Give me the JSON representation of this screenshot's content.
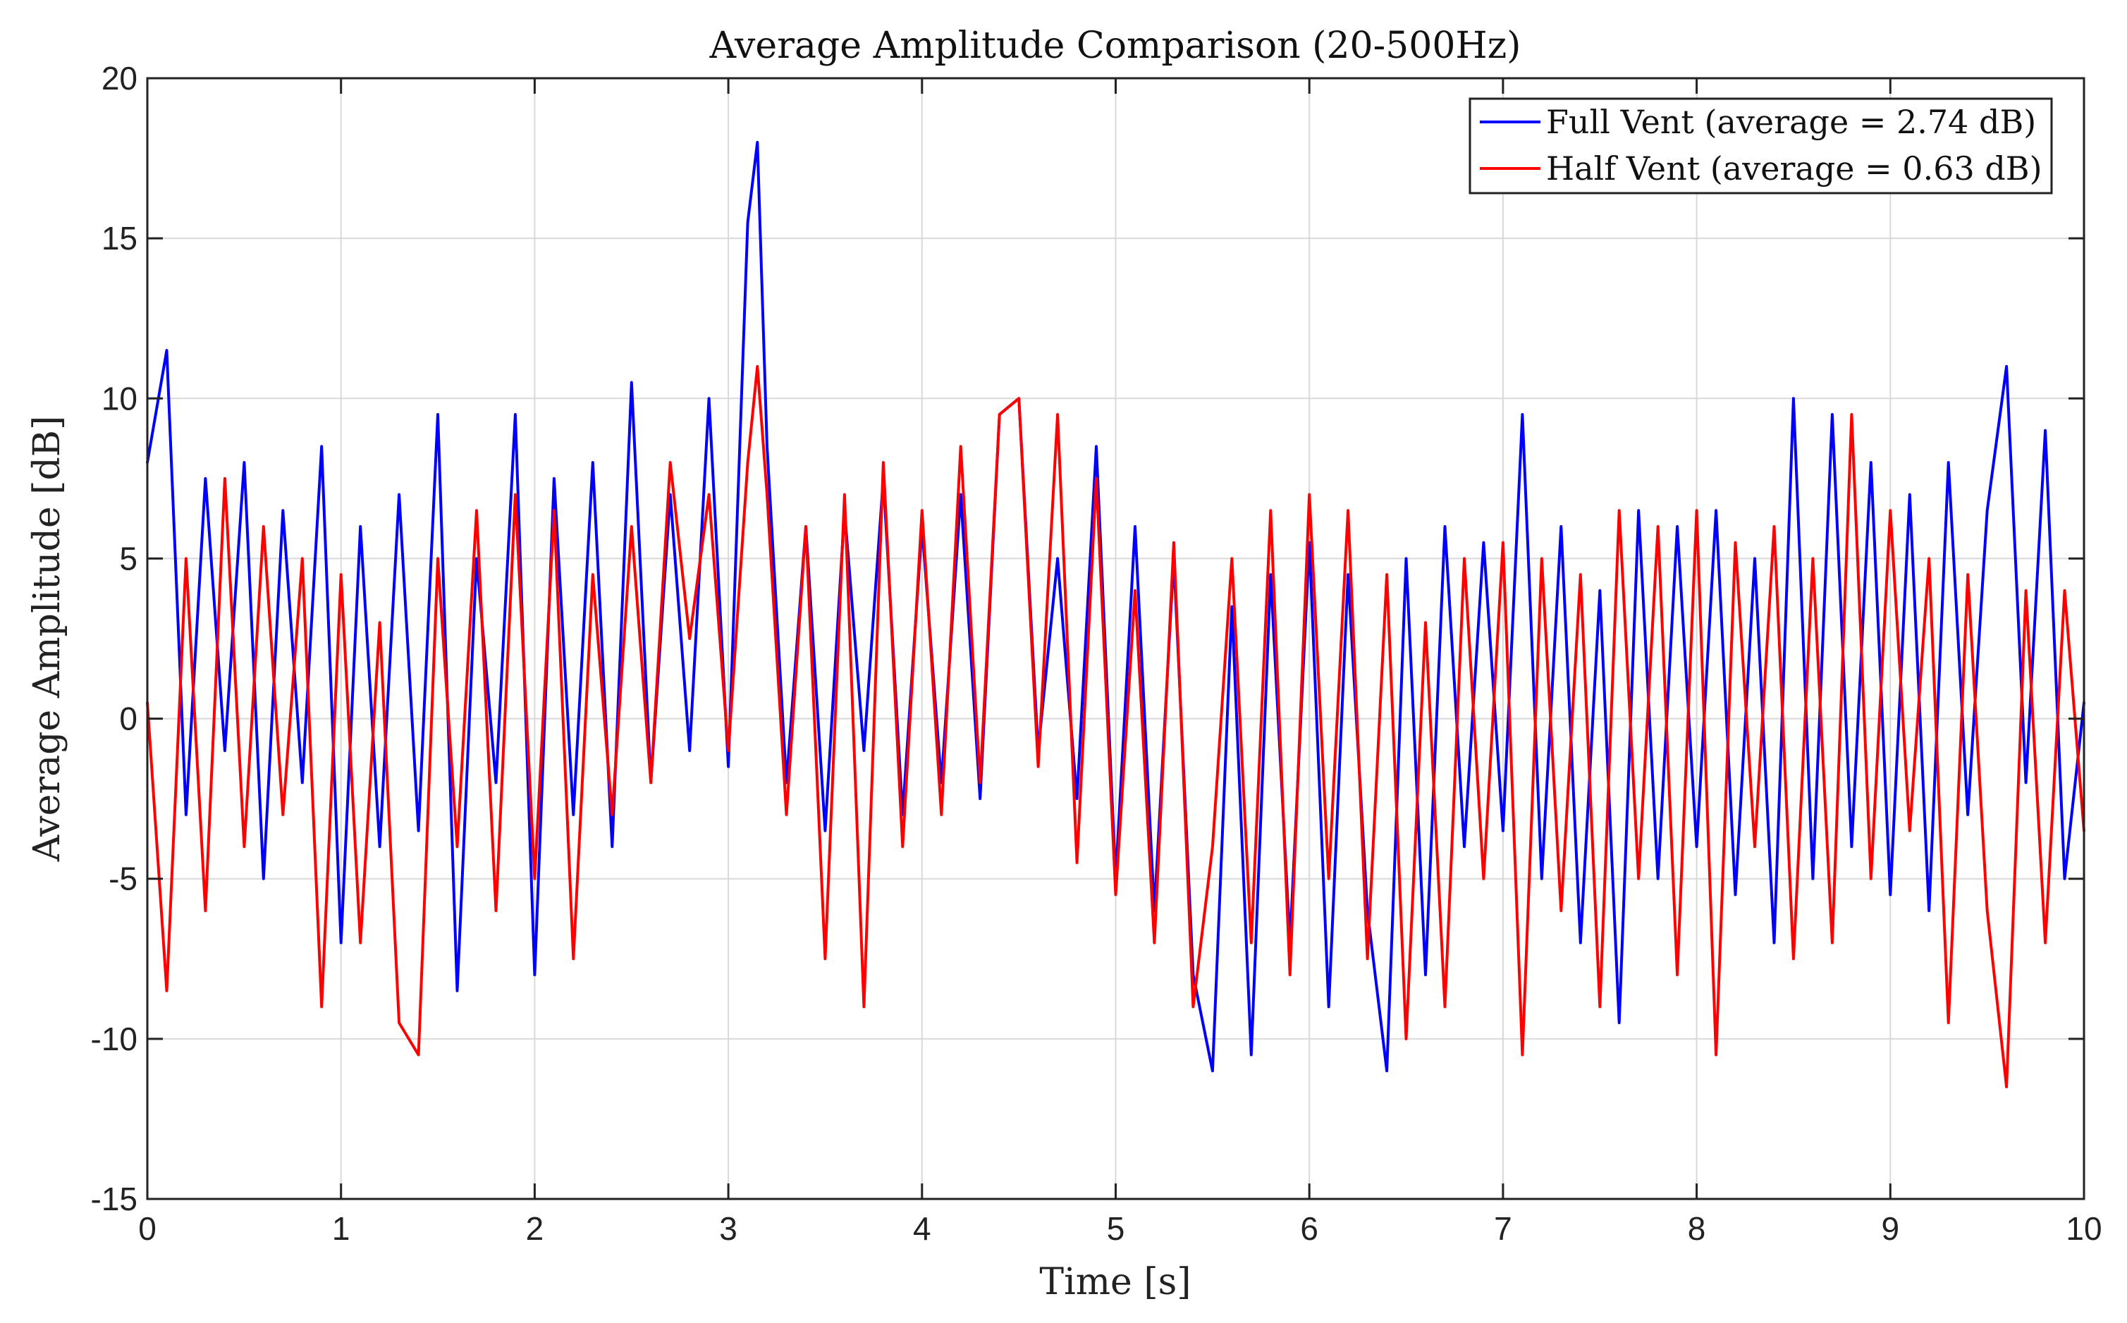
{
  "chart_data": {
    "type": "line",
    "title": "Average Amplitude Comparison (20-500Hz)",
    "xlabel": "Time [s]",
    "ylabel": "Average Amplitude [dB]",
    "xlim": [
      0,
      10
    ],
    "ylim": [
      -15,
      20
    ],
    "xticks": [
      0,
      1,
      2,
      3,
      4,
      5,
      6,
      7,
      8,
      9,
      10
    ],
    "yticks": [
      -15,
      -10,
      -5,
      0,
      5,
      10,
      15,
      20
    ],
    "xtick_labels": [
      "0",
      "1",
      "2",
      "3",
      "4",
      "5",
      "6",
      "7",
      "8",
      "9",
      "10"
    ],
    "ytick_labels": [
      "-15",
      "-10",
      "-5",
      "0",
      "5",
      "10",
      "15",
      "20"
    ],
    "grid": true,
    "legend_position": "top-right",
    "series": [
      {
        "name": "Full Vent",
        "legend": "Full Vent (average = 2.74 dB)",
        "color": "#0000ff",
        "x": [
          0,
          0.1,
          0.2,
          0.3,
          0.4,
          0.5,
          0.6,
          0.7,
          0.8,
          0.9,
          1.0,
          1.1,
          1.2,
          1.3,
          1.4,
          1.5,
          1.6,
          1.7,
          1.8,
          1.9,
          2.0,
          2.1,
          2.2,
          2.3,
          2.4,
          2.5,
          2.6,
          2.7,
          2.8,
          2.9,
          3.0,
          3.1,
          3.15,
          3.2,
          3.3,
          3.4,
          3.5,
          3.6,
          3.7,
          3.8,
          3.9,
          4.0,
          4.1,
          4.2,
          4.3,
          4.4,
          4.5,
          4.6,
          4.7,
          4.8,
          4.9,
          5.0,
          5.1,
          5.2,
          5.3,
          5.4,
          5.5,
          5.6,
          5.7,
          5.8,
          5.9,
          6.0,
          6.1,
          6.2,
          6.3,
          6.4,
          6.5,
          6.6,
          6.7,
          6.8,
          6.9,
          7.0,
          7.1,
          7.2,
          7.3,
          7.4,
          7.5,
          7.6,
          7.7,
          7.8,
          7.9,
          8.0,
          8.1,
          8.2,
          8.3,
          8.4,
          8.5,
          8.6,
          8.7,
          8.8,
          8.9,
          9.0,
          9.1,
          9.2,
          9.3,
          9.4,
          9.5,
          9.6,
          9.7,
          9.8,
          9.9,
          10.0
        ],
        "values": [
          8.0,
          11.5,
          -3.0,
          7.5,
          -1.0,
          8.0,
          -5.0,
          6.5,
          -2.0,
          8.5,
          -7.0,
          6.0,
          -4.0,
          7.0,
          -3.5,
          9.5,
          -8.5,
          5.0,
          -2.0,
          9.5,
          -8.0,
          7.5,
          -3.0,
          8.0,
          -4.0,
          10.5,
          -2.0,
          7.0,
          -1.0,
          10.0,
          -1.5,
          15.5,
          18.0,
          8.5,
          -2.0,
          6.0,
          -3.5,
          6.5,
          -1.0,
          7.5,
          -3.0,
          6.0,
          -2.0,
          7.0,
          -2.5,
          9.5,
          10.0,
          -1.0,
          5.0,
          -2.5,
          8.5,
          -5.0,
          6.0,
          -6.0,
          5.0,
          -8.0,
          -11.0,
          3.5,
          -10.5,
          4.5,
          -7.0,
          5.5,
          -9.0,
          4.5,
          -6.0,
          -11.0,
          5.0,
          -8.0,
          6.0,
          -4.0,
          5.5,
          -3.5,
          9.5,
          -5.0,
          6.0,
          -7.0,
          4.0,
          -9.5,
          6.5,
          -5.0,
          6.0,
          -4.0,
          6.5,
          -5.5,
          5.0,
          -7.0,
          10.0,
          -5.0,
          9.5,
          -4.0,
          8.0,
          -5.5,
          7.0,
          -6.0,
          8.0,
          -3.0,
          6.5,
          11.0,
          -2.0,
          9.0,
          -5.0,
          0.5
        ]
      },
      {
        "name": "Half Vent",
        "legend": "Half Vent (average = 0.63 dB)",
        "color": "#ff0000",
        "x": [
          0,
          0.1,
          0.2,
          0.3,
          0.4,
          0.5,
          0.6,
          0.7,
          0.8,
          0.9,
          1.0,
          1.1,
          1.2,
          1.3,
          1.4,
          1.5,
          1.6,
          1.7,
          1.8,
          1.9,
          2.0,
          2.1,
          2.2,
          2.3,
          2.4,
          2.5,
          2.6,
          2.7,
          2.8,
          2.9,
          3.0,
          3.1,
          3.15,
          3.2,
          3.3,
          3.4,
          3.5,
          3.6,
          3.7,
          3.8,
          3.9,
          4.0,
          4.1,
          4.2,
          4.3,
          4.4,
          4.5,
          4.6,
          4.7,
          4.8,
          4.9,
          5.0,
          5.1,
          5.2,
          5.3,
          5.4,
          5.5,
          5.6,
          5.7,
          5.8,
          5.9,
          6.0,
          6.1,
          6.2,
          6.3,
          6.4,
          6.5,
          6.6,
          6.7,
          6.8,
          6.9,
          7.0,
          7.1,
          7.2,
          7.3,
          7.4,
          7.5,
          7.6,
          7.7,
          7.8,
          7.9,
          8.0,
          8.1,
          8.2,
          8.3,
          8.4,
          8.5,
          8.6,
          8.7,
          8.8,
          8.9,
          9.0,
          9.1,
          9.2,
          9.3,
          9.4,
          9.5,
          9.6,
          9.7,
          9.8,
          9.9,
          10.0
        ],
        "values": [
          0.5,
          -8.5,
          5.0,
          -6.0,
          7.5,
          -4.0,
          6.0,
          -3.0,
          5.0,
          -9.0,
          4.5,
          -7.0,
          3.0,
          -9.5,
          -10.5,
          5.0,
          -4.0,
          6.5,
          -6.0,
          7.0,
          -5.0,
          6.5,
          -7.5,
          4.5,
          -3.0,
          6.0,
          -2.0,
          8.0,
          2.5,
          7.0,
          -1.0,
          8.0,
          11.0,
          7.0,
          -3.0,
          6.0,
          -7.5,
          7.0,
          -9.0,
          8.0,
          -4.0,
          6.5,
          -3.0,
          8.5,
          -2.0,
          9.5,
          10.0,
          -1.5,
          9.5,
          -4.5,
          7.5,
          -5.5,
          4.0,
          -7.0,
          5.5,
          -9.0,
          -4.0,
          5.0,
          -7.0,
          6.5,
          -8.0,
          7.0,
          -5.0,
          6.5,
          -7.5,
          4.5,
          -10.0,
          3.0,
          -9.0,
          5.0,
          -5.0,
          5.5,
          -10.5,
          5.0,
          -6.0,
          4.5,
          -9.0,
          6.5,
          -5.0,
          6.0,
          -8.0,
          6.5,
          -10.5,
          5.5,
          -4.0,
          6.0,
          -7.5,
          5.0,
          -7.0,
          9.5,
          -5.0,
          6.5,
          -3.5,
          5.0,
          -9.5,
          4.5,
          -6.0,
          -11.5,
          4.0,
          -7.0,
          4.0,
          -3.5
        ]
      }
    ]
  }
}
